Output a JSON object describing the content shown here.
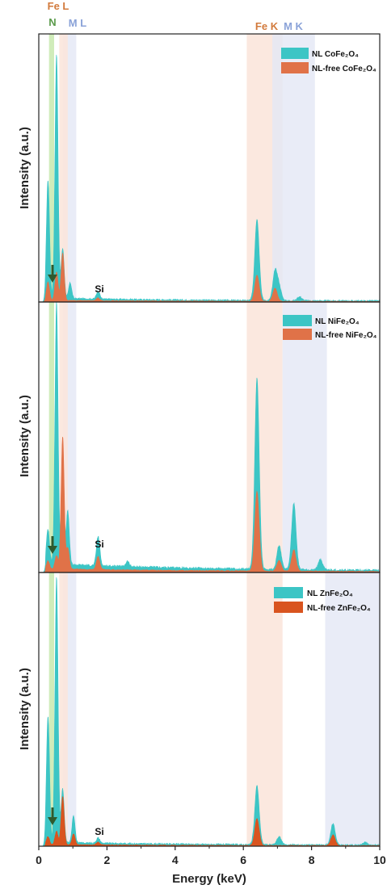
{
  "colors": {
    "nl": "#3cc5c5",
    "nl_free": "#e07248",
    "nl_free_zn": "#d9541f",
    "n_band": "#cdebb6",
    "fe_band": "#fbe6dc",
    "m_band": "#e3e7f5",
    "fe_label": "#d27a3c",
    "m_label": "#8aa2d8",
    "n_label": "#5a9a4a",
    "arrow": "#2e5a2e"
  },
  "top_labels": {
    "n": "N",
    "fe_l": "Fe L",
    "m_l": "M L",
    "fe_k": "Fe K",
    "m_k": "M K"
  },
  "x_axis": {
    "label": "Energy (keV)",
    "ticks": [
      "0",
      "2",
      "4",
      "6",
      "8",
      "10"
    ]
  },
  "chart_data": {
    "type": "area",
    "xlabel": "Energy (keV)",
    "ylabel": "Intensity (a.u.)",
    "xlim": [
      0,
      10
    ],
    "x_ticks": [
      0,
      2,
      4,
      6,
      8,
      10
    ],
    "shaded_bands": [
      {
        "name": "N",
        "range": [
          0.3,
          0.45
        ]
      },
      {
        "name": "Fe L",
        "range": [
          0.6,
          0.85
        ]
      },
      {
        "name": "M L",
        "range": [
          0.7,
          1.1
        ]
      },
      {
        "name": "Fe K",
        "range": [
          6.1,
          7.15
        ]
      },
      {
        "name": "M K",
        "range": [
          6.85,
          8.1
        ]
      }
    ],
    "panels": [
      {
        "ylabel": "Intensity (a.u.)",
        "legend": [
          "NL CoFe₂O₄",
          "NL-free CoFe₂O₄"
        ],
        "si_label": "Si",
        "m_band": [
          6.85,
          8.1
        ],
        "series": [
          {
            "name": "NL CoFe₂O₄",
            "peaks": [
              [
                0.27,
                0.45
              ],
              [
                0.52,
                0.93
              ],
              [
                0.7,
                0.19
              ],
              [
                0.92,
                0.06
              ],
              [
                1.74,
                0.03
              ],
              [
                6.4,
                0.31
              ],
              [
                6.93,
                0.11
              ],
              [
                7.05,
                0.05
              ],
              [
                7.65,
                0.015
              ]
            ]
          },
          {
            "name": "NL-free CoFe₂O₄",
            "peaks": [
              [
                0.27,
                0.07
              ],
              [
                0.52,
                0.11
              ],
              [
                0.7,
                0.18
              ],
              [
                1.74,
                0.01
              ],
              [
                6.4,
                0.1
              ],
              [
                6.93,
                0.05
              ]
            ]
          }
        ]
      },
      {
        "ylabel": "Intensity (a.u.)",
        "legend": [
          "NL NiFe₂O₄",
          "NL-free NiFe₂O₄"
        ],
        "si_label": "Si",
        "m_band": [
          7.15,
          8.45
        ],
        "series": [
          {
            "name": "NL NiFe₂O₄",
            "peaks": [
              [
                0.27,
                0.13
              ],
              [
                0.52,
                0.99
              ],
              [
                0.7,
                0.29
              ],
              [
                0.85,
                0.2
              ],
              [
                1.74,
                0.11
              ],
              [
                2.6,
                0.02
              ],
              [
                6.4,
                0.72
              ],
              [
                7.05,
                0.09
              ],
              [
                7.48,
                0.25
              ],
              [
                8.26,
                0.04
              ]
            ]
          },
          {
            "name": "NL-free NiFe₂O₄",
            "peaks": [
              [
                0.27,
                0.03
              ],
              [
                0.52,
                0.05
              ],
              [
                0.7,
                0.5
              ],
              [
                0.85,
                0.08
              ],
              [
                1.74,
                0.05
              ],
              [
                6.4,
                0.3
              ],
              [
                7.05,
                0.04
              ],
              [
                7.48,
                0.08
              ]
            ]
          }
        ]
      },
      {
        "ylabel": "Intensity (a.u.)",
        "legend": [
          "NL ZnFe₂O₄",
          "NL-free ZnFe₂O₄"
        ],
        "si_label": "Si",
        "m_band": [
          8.4,
          10
        ],
        "series": [
          {
            "name": "NL ZnFe₂O₄",
            "peaks": [
              [
                0.27,
                0.47
              ],
              [
                0.52,
                0.99
              ],
              [
                0.7,
                0.2
              ],
              [
                1.02,
                0.1
              ],
              [
                1.74,
                0.02
              ],
              [
                6.4,
                0.22
              ],
              [
                7.05,
                0.03
              ],
              [
                8.63,
                0.08
              ],
              [
                9.57,
                0.01
              ]
            ]
          },
          {
            "name": "NL-free ZnFe₂O₄",
            "peaks": [
              [
                0.27,
                0.03
              ],
              [
                0.52,
                0.05
              ],
              [
                0.7,
                0.18
              ],
              [
                1.02,
                0.04
              ],
              [
                1.74,
                0.01
              ],
              [
                6.4,
                0.1
              ],
              [
                8.63,
                0.04
              ]
            ]
          }
        ]
      }
    ]
  }
}
